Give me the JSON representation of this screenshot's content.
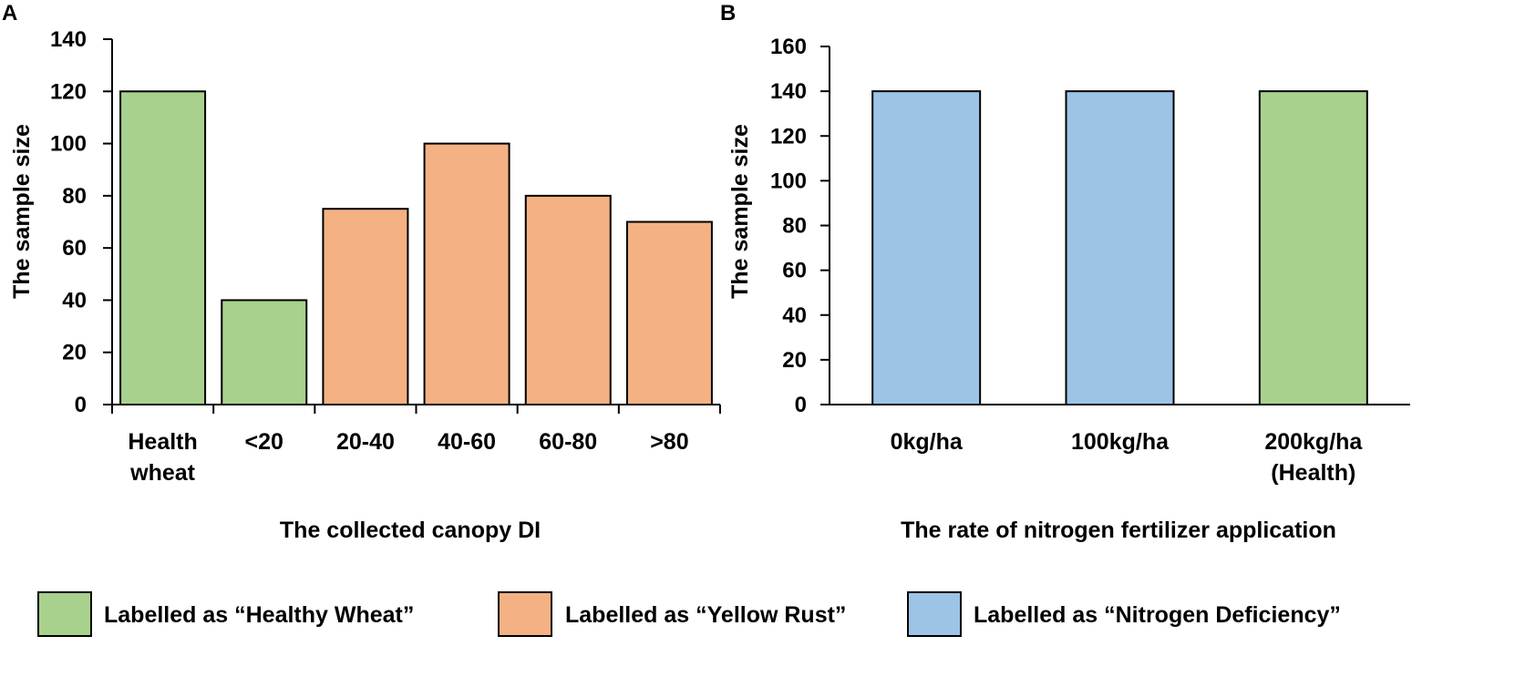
{
  "colors": {
    "healthy": "#a9d18e",
    "rust": "#f4b183",
    "nitrogen": "#9dc3e6",
    "bar_stroke": "#000000",
    "axis": "#000000"
  },
  "chart_data": [
    {
      "panel": "A",
      "type": "bar",
      "categories": [
        [
          "Health",
          "wheat"
        ],
        [
          "<20"
        ],
        [
          "20-40"
        ],
        [
          "40-60"
        ],
        [
          "60-80"
        ],
        [
          ">80"
        ]
      ],
      "values": [
        120,
        40,
        75,
        100,
        80,
        70
      ],
      "bar_classes": [
        "healthy",
        "healthy",
        "rust",
        "rust",
        "rust",
        "rust"
      ],
      "xlabel": "The collected canopy DI",
      "ylabel": "The sample size",
      "ylim": [
        0,
        140
      ],
      "yticks": [
        0,
        20,
        40,
        60,
        80,
        100,
        120,
        140
      ],
      "grid": false
    },
    {
      "panel": "B",
      "type": "bar",
      "categories": [
        [
          "0kg/ha"
        ],
        [
          "100kg/ha"
        ],
        [
          "200kg/ha",
          "(Health)"
        ]
      ],
      "values": [
        140,
        140,
        140
      ],
      "bar_classes": [
        "nitrogen",
        "nitrogen",
        "healthy"
      ],
      "xlabel": "The rate of nitrogen fertilizer application",
      "ylabel": "The sample size",
      "ylim": [
        0,
        160
      ],
      "yticks": [
        0,
        20,
        40,
        60,
        80,
        100,
        120,
        140,
        160
      ],
      "grid": false
    }
  ],
  "legend": [
    {
      "class": "healthy",
      "label": "Labelled as “Healthy Wheat”"
    },
    {
      "class": "rust",
      "label": "Labelled as “Yellow Rust”"
    },
    {
      "class": "nitrogen",
      "label": "Labelled as “Nitrogen Deficiency”"
    }
  ]
}
